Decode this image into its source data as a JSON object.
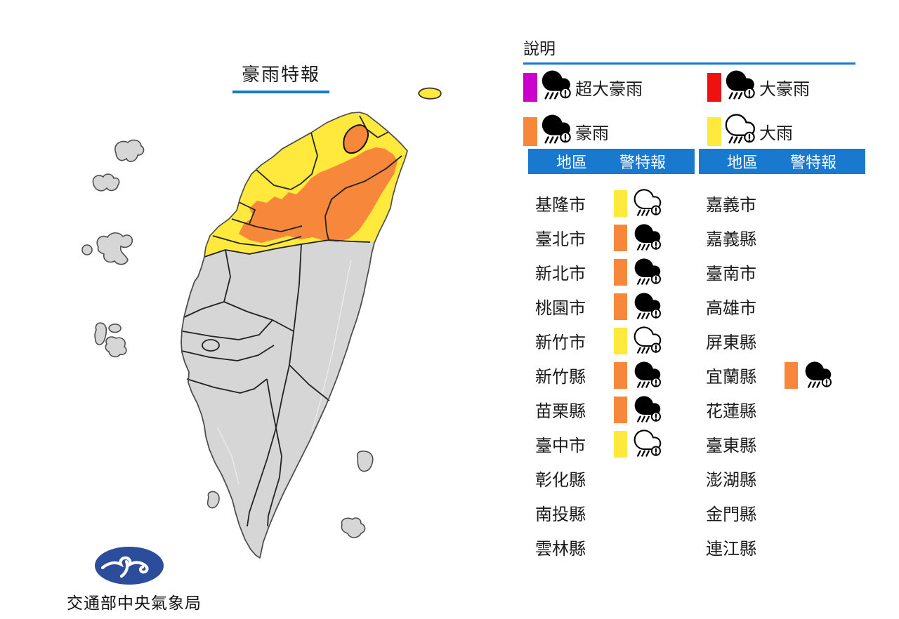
{
  "title": "豪雨特報",
  "legend": {
    "heading": "說明",
    "items": [
      {
        "label": "超大豪雨",
        "color": "#cb00cb",
        "icon": "rain-cloud-filled"
      },
      {
        "label": "大豪雨",
        "color": "#ef1010",
        "icon": "rain-cloud-filled"
      },
      {
        "label": "豪雨",
        "color": "#f6873b",
        "icon": "rain-cloud-filled"
      },
      {
        "label": "大雨",
        "color": "#ffe93c",
        "icon": "rain-cloud-outline"
      }
    ]
  },
  "tables": {
    "header": {
      "region": "地區",
      "warning": "警特報"
    },
    "left": {
      "rows": [
        {
          "region": "基隆市",
          "level": "大雨",
          "color": "#ffe93c",
          "icon": "rain-cloud-outline"
        },
        {
          "region": "臺北市",
          "level": "豪雨",
          "color": "#f6873b",
          "icon": "rain-cloud-filled"
        },
        {
          "region": "新北市",
          "level": "豪雨",
          "color": "#f6873b",
          "icon": "rain-cloud-filled"
        },
        {
          "region": "桃園市",
          "level": "豪雨",
          "color": "#f6873b",
          "icon": "rain-cloud-filled"
        },
        {
          "region": "新竹市",
          "level": "大雨",
          "color": "#ffe93c",
          "icon": "rain-cloud-outline"
        },
        {
          "region": "新竹縣",
          "level": "豪雨",
          "color": "#f6873b",
          "icon": "rain-cloud-filled"
        },
        {
          "region": "苗栗縣",
          "level": "豪雨",
          "color": "#f6873b",
          "icon": "rain-cloud-filled"
        },
        {
          "region": "臺中市",
          "level": "大雨",
          "color": "#ffe93c",
          "icon": "rain-cloud-outline"
        },
        {
          "region": "彰化縣",
          "level": null
        },
        {
          "region": "南投縣",
          "level": null
        },
        {
          "region": "雲林縣",
          "level": null
        }
      ]
    },
    "right": {
      "rows": [
        {
          "region": "嘉義市",
          "level": null
        },
        {
          "region": "嘉義縣",
          "level": null
        },
        {
          "region": "臺南市",
          "level": null
        },
        {
          "region": "高雄市",
          "level": null
        },
        {
          "region": "屏東縣",
          "level": null
        },
        {
          "region": "宜蘭縣",
          "level": "豪雨",
          "color": "#f6873b",
          "icon": "rain-cloud-filled"
        },
        {
          "region": "花蓮縣",
          "level": null
        },
        {
          "region": "臺東縣",
          "level": null
        },
        {
          "region": "澎湖縣",
          "level": null
        },
        {
          "region": "金門縣",
          "level": null
        },
        {
          "region": "連江縣",
          "level": null
        }
      ]
    }
  },
  "footer": {
    "agency": "交通部中央氣象局"
  },
  "colors": {
    "extremely_torrential_rain": "#cb00cb",
    "torrential_rain": "#ef1010",
    "extremely_heavy_rain": "#f6873b",
    "heavy_rain": "#ffe93c",
    "no_warning_gray": "#d6d6d6",
    "accent_blue": "#1879ce",
    "logo_navy": "#2c4d9c"
  }
}
